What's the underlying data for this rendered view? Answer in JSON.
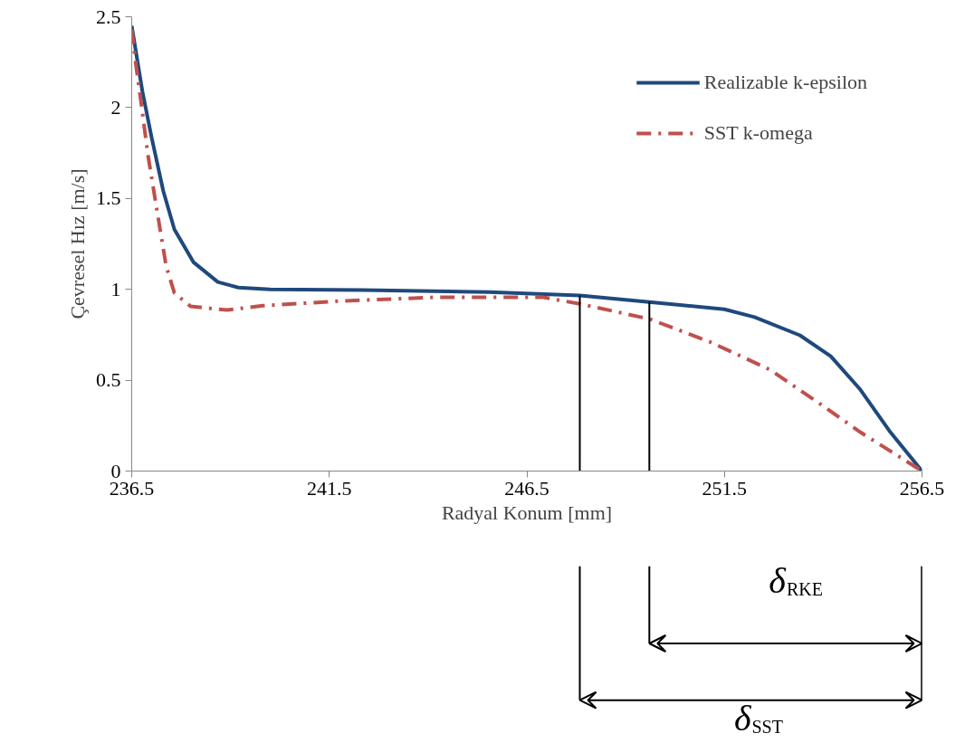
{
  "chart_data": {
    "type": "line",
    "xlabel": "Radyal Konum [mm]",
    "ylabel": "Çevresel Hız [m/s]",
    "xlim": [
      236.5,
      256.5
    ],
    "xticks": [
      236.5,
      241.5,
      246.5,
      251.5,
      256.5
    ],
    "ylim": [
      0,
      2.5
    ],
    "yticks": [
      0,
      0.5,
      1,
      1.5,
      2,
      2.5
    ],
    "grid": false,
    "legend": "top right",
    "series": [
      {
        "name": "Realizable k-epsilon",
        "color": "#1f497d",
        "line_style": "solid",
        "x": [
          236.5,
          236.77,
          237.0,
          237.3,
          237.58,
          238.06,
          238.68,
          239.2,
          240.0,
          242.34,
          245.55,
          247.84,
          249.6,
          251.5,
          252.26,
          253.41,
          254.19,
          254.94,
          255.7,
          256.5
        ],
        "values": [
          2.45,
          2.09,
          1.84,
          1.54,
          1.33,
          1.15,
          1.04,
          1.01,
          1.0,
          0.996,
          0.985,
          0.966,
          0.93,
          0.89,
          0.847,
          0.747,
          0.632,
          0.448,
          0.214,
          0
        ]
      },
      {
        "name": "SST k-omega",
        "color": "#c0504d",
        "line_style": "dashdot",
        "x": [
          236.5,
          236.61,
          236.73,
          236.91,
          237.12,
          237.37,
          237.58,
          237.99,
          238.91,
          239.82,
          241.82,
          244.17,
          246.92,
          247.84,
          249.6,
          251.12,
          252.65,
          253.8,
          254.94,
          256.32,
          256.5
        ],
        "values": [
          2.43,
          2.23,
          2.04,
          1.74,
          1.46,
          1.13,
          0.98,
          0.906,
          0.886,
          0.91,
          0.936,
          0.956,
          0.956,
          0.92,
          0.837,
          0.712,
          0.558,
          0.388,
          0.214,
          0.025,
          0
        ]
      }
    ],
    "ref_lines": [
      {
        "axis": "x",
        "value": 249.6,
        "color": "#000000"
      },
      {
        "axis": "x",
        "value": 247.84,
        "color": "#000000"
      }
    ],
    "annotations": [
      "δ$_{RKE}$",
      "δ$_{SST}$"
    ]
  }
}
